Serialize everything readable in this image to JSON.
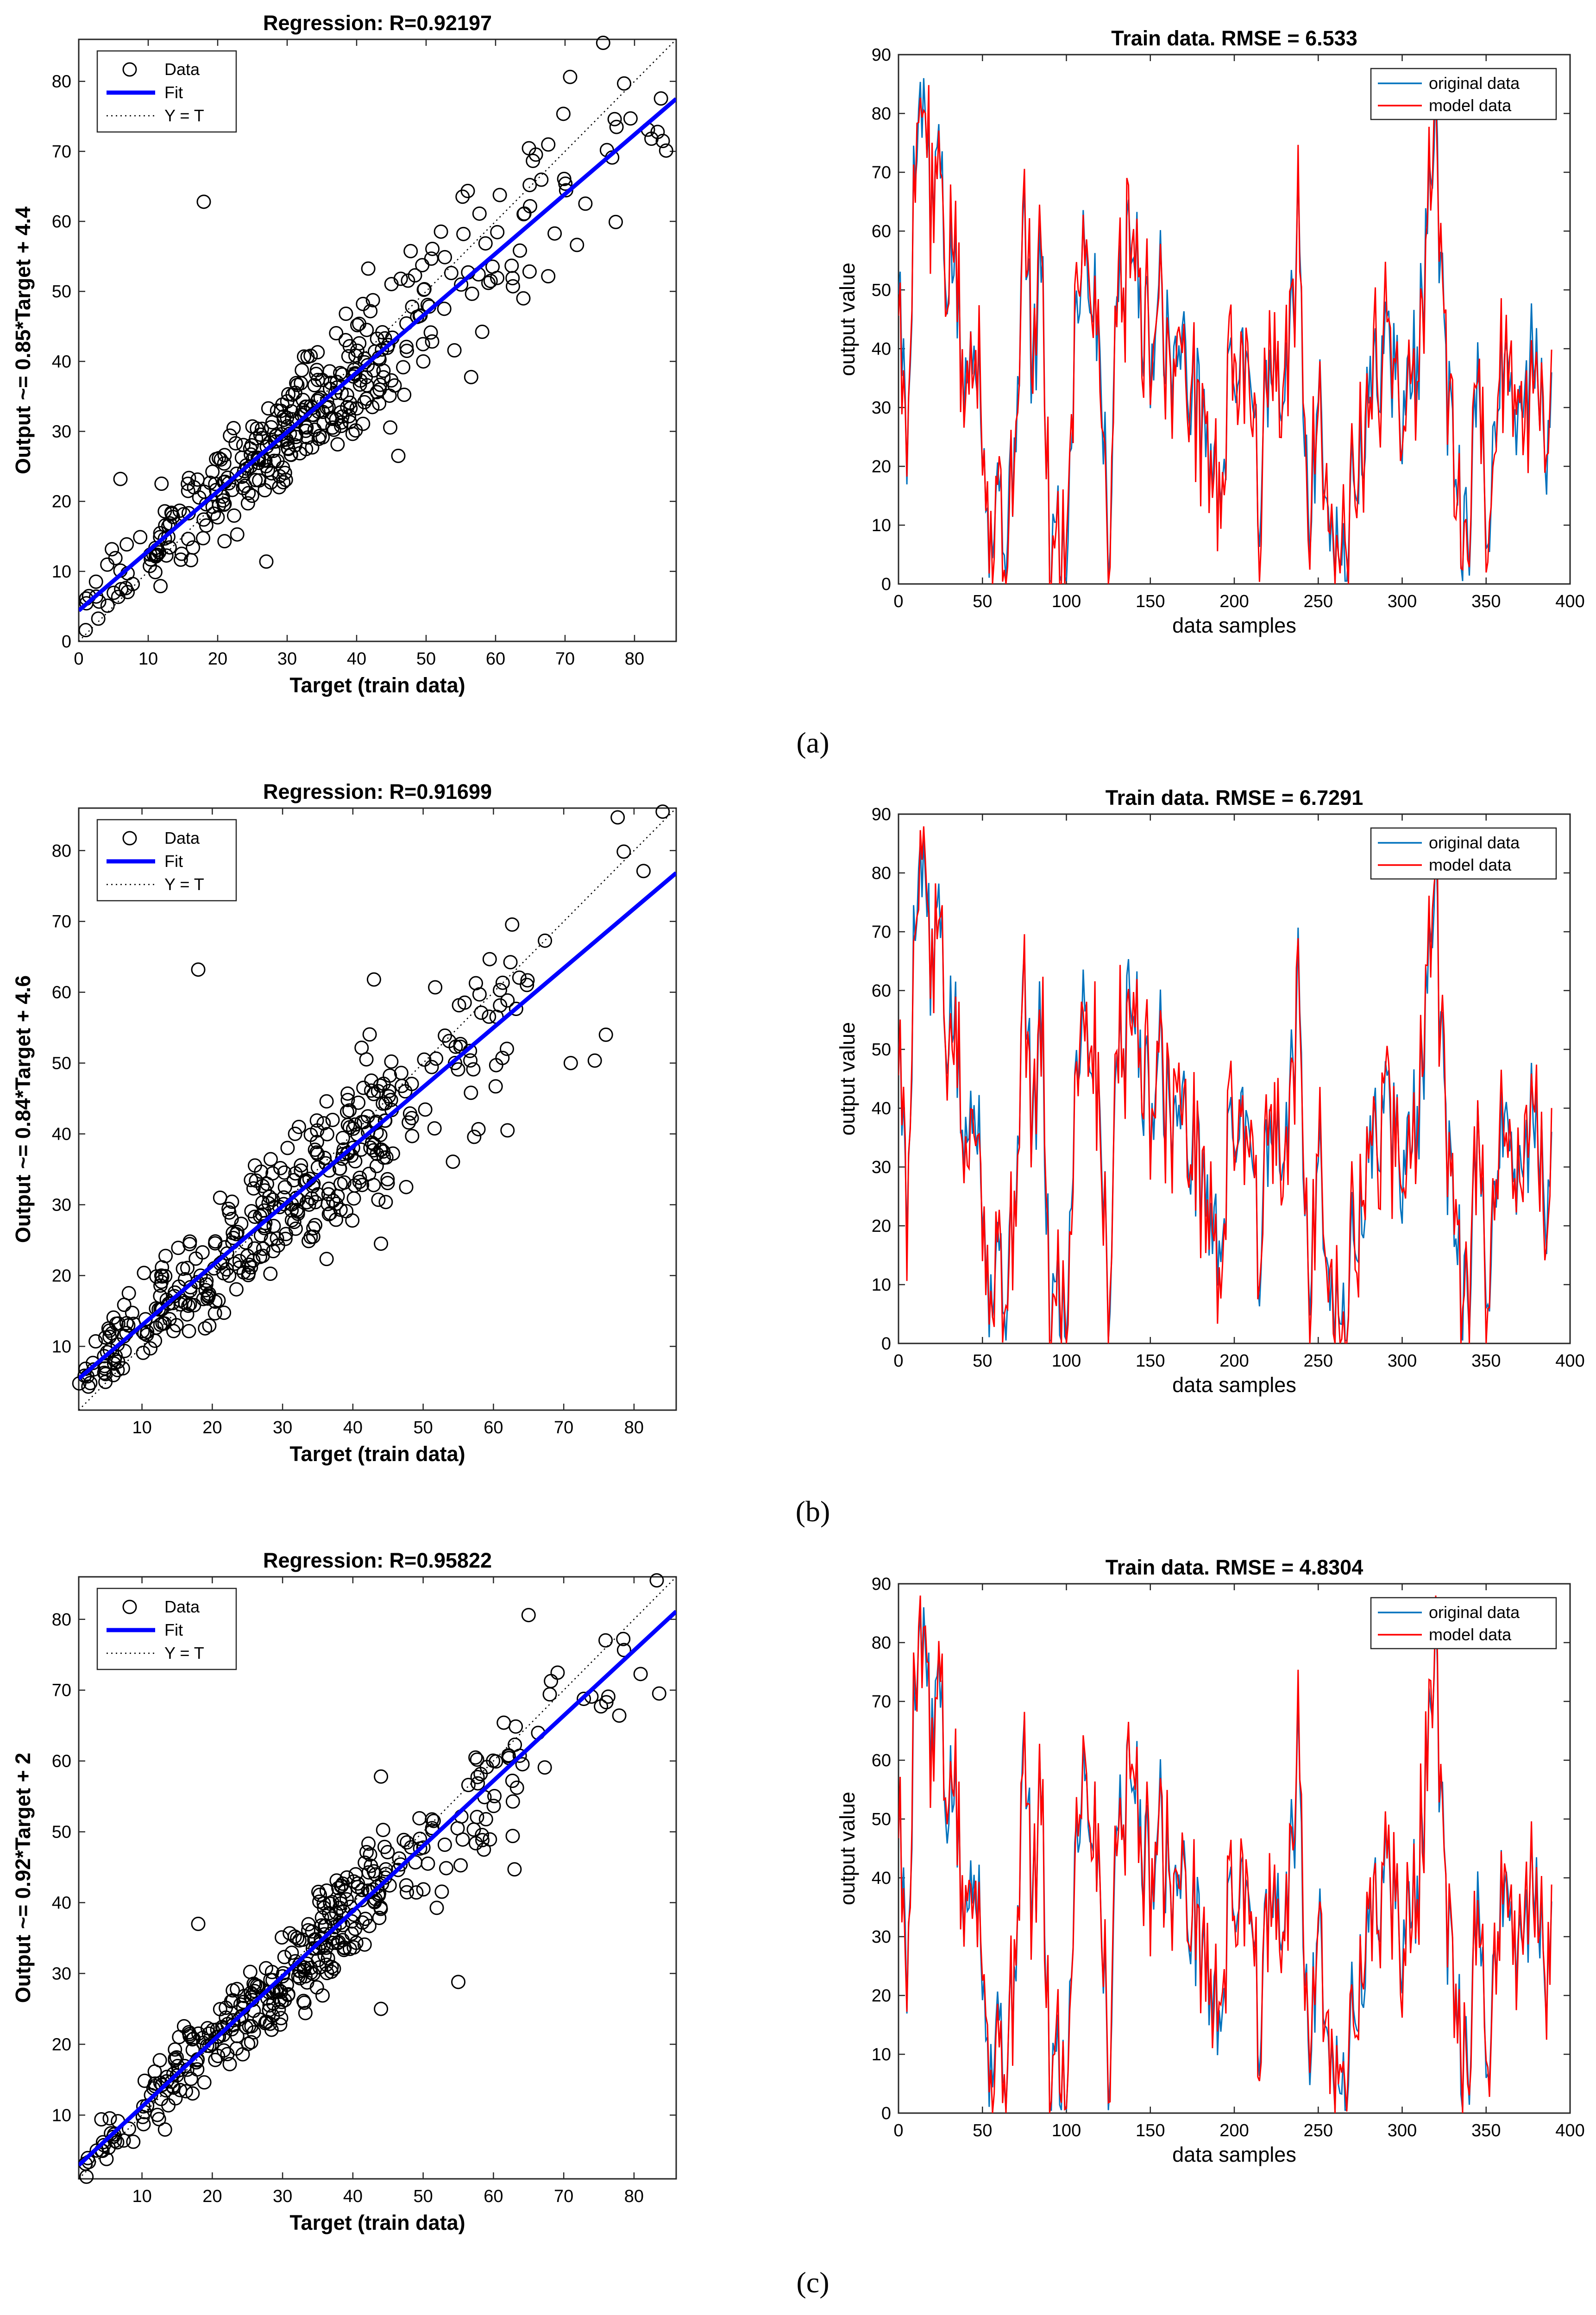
{
  "chart_data": [
    {
      "id": "a-reg",
      "type": "scatter",
      "title": "Regression: R=0.92197",
      "xlabel": "Target (train data)",
      "ylabel": "Output ~= 0.85*Target + 4.4",
      "xlim": [
        0,
        86
      ],
      "ylim": [
        0,
        86
      ],
      "xticks": [
        0,
        10,
        20,
        30,
        40,
        50,
        60,
        70,
        80
      ],
      "yticks": [
        0,
        10,
        20,
        30,
        40,
        50,
        60,
        70,
        80
      ],
      "fit": {
        "slope": 0.85,
        "intercept": 4.4
      },
      "legend": [
        "Data",
        "Fit",
        "Y = T"
      ],
      "legend_position": "top-left",
      "seed": 11,
      "noise": 5.5,
      "outliers": [
        [
          18,
          62.8
        ],
        [
          6,
          23.2
        ],
        [
          46,
          26.5
        ],
        [
          27,
          11.4
        ],
        [
          48,
          47.8
        ],
        [
          64,
          49
        ]
      ]
    },
    {
      "id": "a-ts",
      "type": "line",
      "title": "Train data. RMSE = 6.533",
      "xlabel": "data samples",
      "ylabel": "output value",
      "xlim": [
        0,
        400
      ],
      "ylim": [
        0,
        90
      ],
      "xticks": [
        0,
        50,
        100,
        150,
        200,
        250,
        300,
        350,
        400
      ],
      "yticks": [
        0,
        10,
        20,
        30,
        40,
        50,
        60,
        70,
        80,
        90
      ],
      "series": [
        {
          "name": "original data",
          "color": "#0072BD"
        },
        {
          "name": "model data",
          "color": "#FF0000"
        }
      ],
      "legend_position": "top-right",
      "seed": 5,
      "model_noise": 7
    },
    {
      "id": "b-reg",
      "type": "scatter",
      "title": "Regression: R=0.91699",
      "xlabel": "Target (train data)",
      "ylabel": "Output ~= 0.84*Target + 4.6",
      "xlim": [
        1,
        86
      ],
      "ylim": [
        1,
        86
      ],
      "xticks": [
        10,
        20,
        30,
        40,
        50,
        60,
        70,
        80
      ],
      "yticks": [
        10,
        20,
        30,
        40,
        50,
        60,
        70,
        80
      ],
      "fit": {
        "slope": 0.84,
        "intercept": 4.6
      },
      "legend": [
        "Data",
        "Fit",
        "Y = T"
      ],
      "legend_position": "top-left",
      "seed": 23,
      "noise": 5.8,
      "outliers": [
        [
          18,
          63.2
        ],
        [
          43,
          61.8
        ],
        [
          44,
          24.5
        ],
        [
          62,
          40.5
        ],
        [
          76,
          54
        ],
        [
          71,
          50
        ]
      ]
    },
    {
      "id": "b-ts",
      "type": "line",
      "title": "Train data. RMSE = 6.7291",
      "xlabel": "data samples",
      "ylabel": "output value",
      "xlim": [
        0,
        400
      ],
      "ylim": [
        0,
        90
      ],
      "xticks": [
        0,
        50,
        100,
        150,
        200,
        250,
        300,
        350,
        400
      ],
      "yticks": [
        0,
        10,
        20,
        30,
        40,
        50,
        60,
        70,
        80,
        90
      ],
      "series": [
        {
          "name": "original data",
          "color": "#0072BD"
        },
        {
          "name": "model data",
          "color": "#FF0000"
        }
      ],
      "legend_position": "top-right",
      "seed": 5,
      "model_noise": 7.2
    },
    {
      "id": "c-reg",
      "type": "scatter",
      "title": "Regression: R=0.95822",
      "xlabel": "Target (train data)",
      "ylabel": "Output ~= 0.92*Target + 2",
      "xlim": [
        1,
        86
      ],
      "ylim": [
        1,
        86
      ],
      "xticks": [
        10,
        20,
        30,
        40,
        50,
        60,
        70,
        80
      ],
      "yticks": [
        10,
        20,
        30,
        40,
        50,
        60,
        70,
        80
      ],
      "fit": {
        "slope": 0.92,
        "intercept": 2
      },
      "legend": [
        "Data",
        "Fit",
        "Y = T"
      ],
      "legend_position": "top-left",
      "seed": 37,
      "noise": 4,
      "outliers": [
        [
          44,
          57.8
        ],
        [
          65,
          80.6
        ],
        [
          44,
          25
        ],
        [
          55,
          28.8
        ],
        [
          63,
          44.7
        ],
        [
          18,
          37
        ]
      ]
    },
    {
      "id": "c-ts",
      "type": "line",
      "title": "Train data. RMSE = 4.8304",
      "xlabel": "data samples",
      "ylabel": "output value",
      "xlim": [
        0,
        400
      ],
      "ylim": [
        0,
        90
      ],
      "xticks": [
        0,
        50,
        100,
        150,
        200,
        250,
        300,
        350,
        400
      ],
      "yticks": [
        0,
        10,
        20,
        30,
        40,
        50,
        60,
        70,
        80,
        90
      ],
      "series": [
        {
          "name": "original data",
          "color": "#0072BD"
        },
        {
          "name": "model data",
          "color": "#FF0000"
        }
      ],
      "legend_position": "top-right",
      "seed": 5,
      "model_noise": 5
    }
  ],
  "captions": [
    "(a)",
    "(b)",
    "(c)"
  ]
}
